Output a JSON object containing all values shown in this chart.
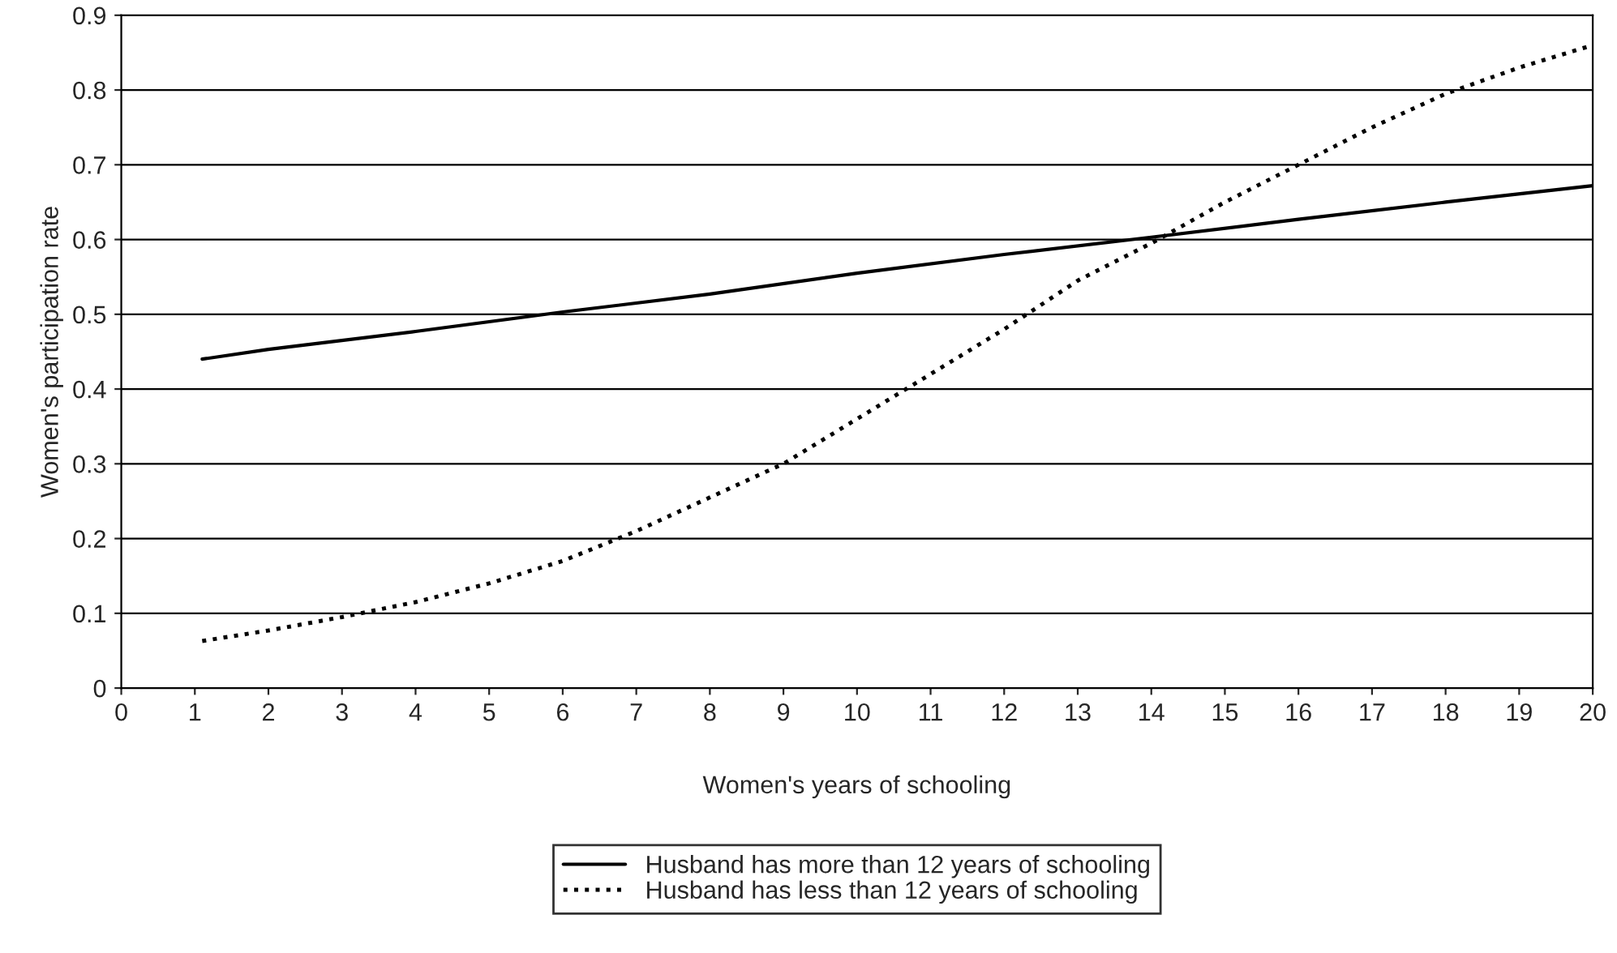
{
  "chart_data": {
    "type": "line",
    "xlabel": "Women's years of schooling",
    "ylabel": "Women's participation rate",
    "xlim": [
      0,
      20
    ],
    "xticks": [
      0,
      1,
      2,
      3,
      4,
      5,
      6,
      7,
      8,
      9,
      10,
      11,
      12,
      13,
      14,
      15,
      16,
      17,
      18,
      19,
      20
    ],
    "ylim": [
      0,
      0.9
    ],
    "yticks": [
      0,
      0.1,
      0.2,
      0.3,
      0.4,
      0.5,
      0.6,
      0.7,
      0.8,
      0.9
    ],
    "grid": "y",
    "legend": "bottom",
    "marker": "none",
    "series": [
      {
        "name": "Husband has more than 12 years of schooling",
        "color": "#000000",
        "line_style": "solid",
        "x": [
          1.1,
          2,
          4,
          6,
          8,
          10,
          12,
          14,
          16,
          18,
          20
        ],
        "values": [
          0.44,
          0.453,
          0.477,
          0.503,
          0.527,
          0.555,
          0.58,
          0.603,
          0.627,
          0.65,
          0.672
        ]
      },
      {
        "name": "Husband has less than 12 years of schooling",
        "color": "#000000",
        "line_style": "dotted",
        "x": [
          1.1,
          2,
          3,
          4,
          5,
          6,
          7,
          8,
          9,
          10,
          11,
          12,
          13,
          14,
          15,
          16,
          17,
          18,
          19,
          20
        ],
        "values": [
          0.063,
          0.077,
          0.095,
          0.115,
          0.14,
          0.17,
          0.21,
          0.255,
          0.3,
          0.36,
          0.42,
          0.48,
          0.545,
          0.595,
          0.65,
          0.7,
          0.75,
          0.795,
          0.83,
          0.86
        ]
      }
    ]
  }
}
